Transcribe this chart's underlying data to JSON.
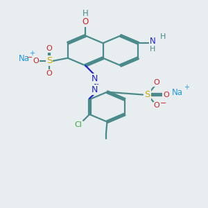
{
  "background_color": "#e8edf0",
  "bond_color": "#4a8a8a",
  "bond_width": 1.6,
  "atom_colors": {
    "C": "#4a8a8a",
    "H": "#4a8a8a",
    "O": "#cc2222",
    "N": "#2222cc",
    "S": "#ccaa00",
    "Na": "#2299dd",
    "Cl": "#33aa33",
    "plus": "#2299dd",
    "minus": "#cc2222"
  }
}
